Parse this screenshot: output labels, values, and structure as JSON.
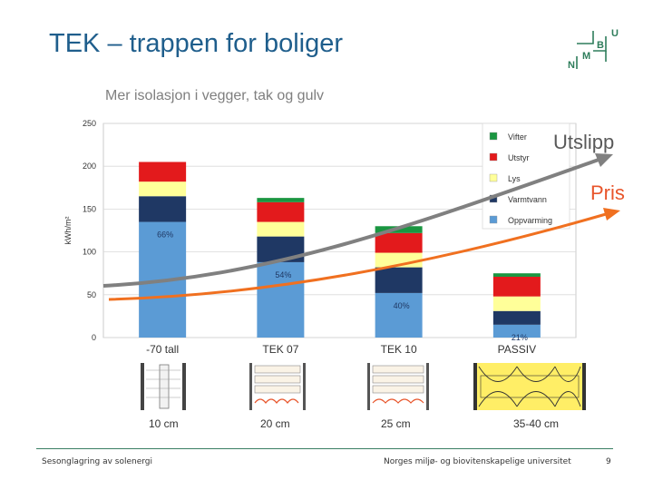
{
  "slide": {
    "title": "TEK – trappen for boliger",
    "footer_left": "Sesonglagring av solenergi",
    "footer_center": "Norges miljø- og biovitenskapelige universitet",
    "page_number": "9"
  },
  "logo": {
    "letters": [
      "N",
      "M",
      "B",
      "U"
    ],
    "color": "#2e7d5b"
  },
  "chart_data": {
    "type": "bar",
    "stacked": true,
    "title": "Mer isolasjon i vegger, tak og gulv",
    "xlabel": "",
    "ylabel": "kWh/m²",
    "ylim": [
      0,
      250
    ],
    "yticks": [
      0,
      50,
      100,
      150,
      200,
      250
    ],
    "grid": true,
    "legend_position": "top-right",
    "categories": [
      "-70 tall",
      "TEK  07",
      "TEK 10",
      "PASSIV"
    ],
    "series": [
      {
        "name": "Oppvarming",
        "color": "#5b9bd5",
        "values": [
          135,
          88,
          52,
          15
        ]
      },
      {
        "name": "Varmtvann",
        "color": "#1f3864",
        "values": [
          30,
          30,
          30,
          16
        ]
      },
      {
        "name": "Lys",
        "color": "#ffff99",
        "values": [
          17,
          17,
          17,
          17
        ]
      },
      {
        "name": "Utstyr",
        "color": "#e31a1c",
        "values": [
          23,
          23,
          23,
          23
        ]
      },
      {
        "name": "Vifter",
        "color": "#1a9641",
        "values": [
          0,
          5,
          8,
          4
        ]
      }
    ],
    "bar_percent_labels": [
      "66%",
      "54%",
      "40%",
      "21%"
    ],
    "trend_lines": [
      {
        "name": "Utslipp",
        "color": "#808080"
      },
      {
        "name": "Pris",
        "color": "#f07020"
      }
    ],
    "insulation_thickness": [
      "10 cm",
      "20 cm",
      "25 cm",
      "35-40 cm"
    ]
  }
}
